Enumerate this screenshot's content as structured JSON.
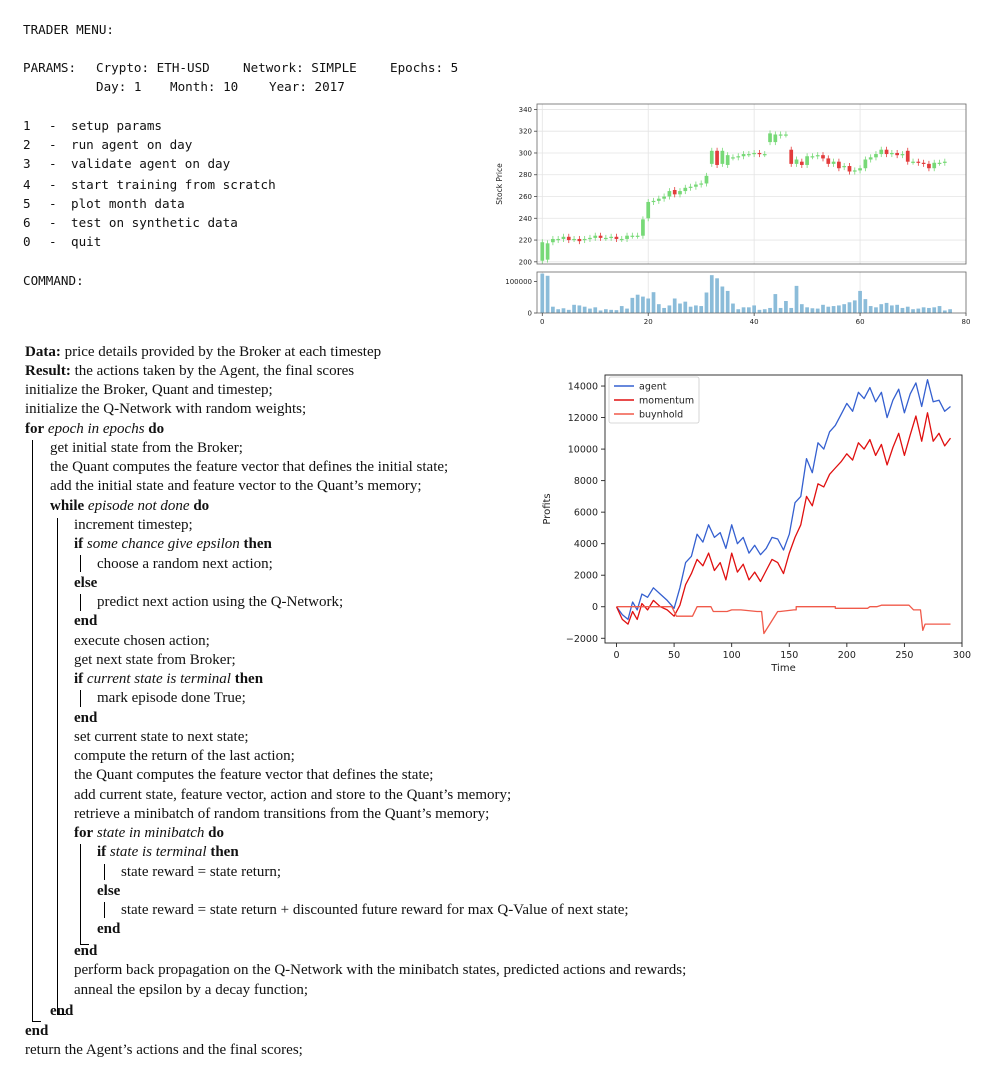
{
  "menu": {
    "title": "TRADER MENU:",
    "params_label": "PARAMS:",
    "crypto": "Crypto: ETH-USD",
    "network": "Network: SIMPLE",
    "epochs": "Epochs: 5",
    "day": "Day: 1",
    "month": "Month: 10",
    "year": "Year: 2017",
    "options": [
      {
        "num": "1",
        "label": "setup params"
      },
      {
        "num": "2",
        "label": "run agent on day"
      },
      {
        "num": "3",
        "label": "validate agent on day"
      },
      {
        "num": "4",
        "label": "start training from scratch"
      },
      {
        "num": "5",
        "label": "plot month data"
      },
      {
        "num": "6",
        "label": "test on synthetic data"
      },
      {
        "num": "0",
        "label": "quit"
      }
    ],
    "dash": "-",
    "command_label": "COMMAND:"
  },
  "algorithm": {
    "data_label": "Data:",
    "data_text": " price details provided by the Broker at each timestep",
    "result_label": "Result:",
    "result_text": " the actions taken by the Agent, the final scores",
    "l_init_broker": "initialize the Broker, Quant and timestep;",
    "l_init_qnet": "initialize the Q-Network with random weights;",
    "kw_for": "for",
    "for_epoch_cond": " epoch in epochs ",
    "kw_do": "do",
    "l_get_initial": "get initial state from the Broker;",
    "l_quant_initial": "the Quant computes the feature vector that defines the initial state;",
    "l_add_initial": "add the initial state and feature vector to the Quant’s memory;",
    "kw_while": "while",
    "while_cond": " episode not done ",
    "l_increment": "increment timestep;",
    "kw_if": "if",
    "if_chance_cond": " some chance give epsilon ",
    "kw_then": "then",
    "l_random_action": "choose a random next action;",
    "kw_else": "else",
    "l_predict_action": "predict next action using the Q-Network;",
    "kw_end": "end",
    "l_execute": "execute chosen action;",
    "l_next_state": "get next state from Broker;",
    "if_terminal_cond": " current state is terminal ",
    "l_mark_done": "mark episode done True;",
    "l_set_state": "set current state to next state;",
    "l_compute_return": "compute the return of the last action;",
    "l_quant_state": "the Quant computes the feature vector that defines the state;",
    "l_add_current": "add current state, feature vector, action and store to the Quant’s memory;",
    "l_retrieve": "retrieve a minibatch of random transitions from the Quant’s memory;",
    "for_state_cond": " state in minibatch ",
    "if_state_terminal_cond": " state is terminal ",
    "l_reward_return": "state reward = state return;",
    "l_reward_discount": "state reward = state return + discounted future reward for max Q-Value of next state;",
    "l_backprop": "perform back propagation on the Q-Network with the minibatch states, predicted actions and rewards;",
    "l_anneal": "anneal the epsilon by a decay function;",
    "l_return": "return the Agent’s actions and the final scores;"
  },
  "chart_data": [
    {
      "type": "candlestick",
      "ylabel": "Stock Price",
      "ylim": [
        198,
        345
      ],
      "yticks": [
        "340",
        "320",
        "300",
        "280",
        "260",
        "240",
        "220",
        "200"
      ],
      "ytick_values": [
        340,
        320,
        300,
        280,
        260,
        240,
        220,
        200
      ],
      "volume_ytick_labels": [
        "100000",
        "0"
      ],
      "volume_ytick_values": [
        100000,
        0
      ],
      "volume_ylim": [
        0,
        130000
      ],
      "xticks": [
        "0",
        "20",
        "40",
        "60",
        "80"
      ],
      "xtick_values": [
        0,
        20,
        40,
        60,
        80
      ],
      "xlim": [
        -1,
        80
      ],
      "up_color": "#77d977",
      "down_color": "#e23c3c",
      "volume_color": "#8bbcd9",
      "candles": [
        {
          "o": 201,
          "c": 218
        },
        {
          "o": 202,
          "c": 217
        },
        {
          "o": 218,
          "c": 221
        },
        {
          "o": 220,
          "c": 221
        },
        {
          "o": 221,
          "c": 223
        },
        {
          "o": 223,
          "c": 220
        },
        {
          "o": 221,
          "c": 221
        },
        {
          "o": 221,
          "c": 219
        },
        {
          "o": 220,
          "c": 221
        },
        {
          "o": 221,
          "c": 222
        },
        {
          "o": 222,
          "c": 224
        },
        {
          "o": 224,
          "c": 222
        },
        {
          "o": 222,
          "c": 222
        },
        {
          "o": 222,
          "c": 223
        },
        {
          "o": 223,
          "c": 221
        },
        {
          "o": 221,
          "c": 221
        },
        {
          "o": 221,
          "c": 224
        },
        {
          "o": 224,
          "c": 224
        },
        {
          "o": 224,
          "c": 224
        },
        {
          "o": 224,
          "c": 239
        },
        {
          "o": 240,
          "c": 255
        },
        {
          "o": 255,
          "c": 256
        },
        {
          "o": 256,
          "c": 258
        },
        {
          "o": 258,
          "c": 260
        },
        {
          "o": 260,
          "c": 265
        },
        {
          "o": 266,
          "c": 262
        },
        {
          "o": 262,
          "c": 265
        },
        {
          "o": 265,
          "c": 268
        },
        {
          "o": 268,
          "c": 269
        },
        {
          "o": 269,
          "c": 271
        },
        {
          "o": 271,
          "c": 272
        },
        {
          "o": 272,
          "c": 279
        },
        {
          "o": 290,
          "c": 302
        },
        {
          "o": 302,
          "c": 289
        },
        {
          "o": 290,
          "c": 302
        },
        {
          "o": 289,
          "c": 298
        },
        {
          "o": 296,
          "c": 296
        },
        {
          "o": 296,
          "c": 297
        },
        {
          "o": 297,
          "c": 299
        },
        {
          "o": 299,
          "c": 299
        },
        {
          "o": 299,
          "c": 300
        },
        {
          "o": 300,
          "c": 299
        },
        {
          "o": 299,
          "c": 299
        },
        {
          "o": 310,
          "c": 318
        },
        {
          "o": 310,
          "c": 317
        },
        {
          "o": 316,
          "c": 317
        },
        {
          "o": 317,
          "c": 317
        },
        {
          "o": 303,
          "c": 290
        },
        {
          "o": 290,
          "c": 294
        },
        {
          "o": 292,
          "c": 289
        },
        {
          "o": 289,
          "c": 297
        },
        {
          "o": 297,
          "c": 297
        },
        {
          "o": 297,
          "c": 298
        },
        {
          "o": 298,
          "c": 295
        },
        {
          "o": 295,
          "c": 290
        },
        {
          "o": 290,
          "c": 292
        },
        {
          "o": 292,
          "c": 286
        },
        {
          "o": 287,
          "c": 288
        },
        {
          "o": 288,
          "c": 283
        },
        {
          "o": 283,
          "c": 284
        },
        {
          "o": 284,
          "c": 286
        },
        {
          "o": 286,
          "c": 294
        },
        {
          "o": 294,
          "c": 296
        },
        {
          "o": 296,
          "c": 299
        },
        {
          "o": 299,
          "c": 303
        },
        {
          "o": 303,
          "c": 299
        },
        {
          "o": 299,
          "c": 300
        },
        {
          "o": 300,
          "c": 298
        },
        {
          "o": 298,
          "c": 299
        },
        {
          "o": 302,
          "c": 292
        },
        {
          "o": 292,
          "c": 292
        },
        {
          "o": 292,
          "c": 291
        },
        {
          "o": 291,
          "c": 290
        },
        {
          "o": 290,
          "c": 286
        },
        {
          "o": 286,
          "c": 291
        },
        {
          "o": 291,
          "c": 291
        },
        {
          "o": 291,
          "c": 292
        }
      ],
      "volumes": [
        125000,
        118000,
        20000,
        12000,
        15000,
        10000,
        26000,
        24000,
        20000,
        14000,
        18000,
        8000,
        12000,
        10000,
        9000,
        22000,
        14000,
        48000,
        58000,
        52000,
        46000,
        66000,
        28000,
        16000,
        24000,
        46000,
        30000,
        36000,
        20000,
        24000,
        22000,
        65000,
        120000,
        110000,
        84000,
        70000,
        30000,
        12000,
        18000,
        18000,
        24000,
        10000,
        12000,
        16000,
        60000,
        16000,
        38000,
        16000,
        86000,
        28000,
        18000,
        15000,
        14000,
        26000,
        20000,
        22000,
        24000,
        28000,
        34000,
        40000,
        70000,
        44000,
        22000,
        18000,
        28000,
        32000,
        24000,
        26000,
        16000,
        20000,
        12000,
        14000,
        18000,
        16000,
        18000,
        22000,
        8000,
        12000
      ]
    },
    {
      "type": "line",
      "xlabel": "Time",
      "ylabel": "Profits",
      "xlim": [
        -10,
        300
      ],
      "ylim": [
        -2300,
        14700
      ],
      "xticks": [
        "0",
        "50",
        "100",
        "150",
        "200",
        "250",
        "300"
      ],
      "xtick_values": [
        0,
        50,
        100,
        150,
        200,
        250,
        300
      ],
      "yticks": [
        "14000",
        "12000",
        "10000",
        "8000",
        "6000",
        "4000",
        "2000",
        "0",
        "−2000"
      ],
      "ytick_values": [
        14000,
        12000,
        10000,
        8000,
        6000,
        4000,
        2000,
        0,
        -2000
      ],
      "legend_position": "upper left",
      "series": [
        {
          "name": "agent",
          "color": "#3560d0",
          "x": [
            0,
            5,
            10,
            14,
            18,
            22,
            27,
            32,
            38,
            44,
            50,
            55,
            60,
            65,
            70,
            75,
            80,
            85,
            90,
            95,
            100,
            105,
            110,
            115,
            120,
            125,
            130,
            135,
            140,
            145,
            150,
            155,
            160,
            165,
            170,
            175,
            180,
            185,
            190,
            195,
            200,
            205,
            210,
            215,
            220,
            225,
            230,
            235,
            240,
            245,
            250,
            255,
            260,
            265,
            270,
            275,
            280,
            285,
            290
          ],
          "y": [
            0,
            -500,
            -800,
            300,
            -200,
            800,
            600,
            1200,
            800,
            400,
            -100,
            1200,
            2800,
            3200,
            4600,
            4100,
            5200,
            4400,
            4700,
            3700,
            5200,
            4000,
            4400,
            3400,
            3900,
            3300,
            3700,
            4400,
            4300,
            3600,
            4600,
            6600,
            7000,
            9400,
            8500,
            10400,
            10000,
            11100,
            11500,
            12200,
            12900,
            12400,
            13600,
            13200,
            13900,
            13000,
            13600,
            12000,
            13100,
            13800,
            12300,
            13500,
            14200,
            12700,
            14400,
            13000,
            13100,
            12400,
            12700
          ]
        },
        {
          "name": "momentum",
          "color": "#e01010",
          "x": [
            0,
            5,
            10,
            14,
            18,
            22,
            27,
            32,
            38,
            44,
            50,
            55,
            60,
            65,
            70,
            75,
            80,
            85,
            90,
            95,
            100,
            105,
            110,
            115,
            120,
            125,
            130,
            135,
            140,
            145,
            150,
            155,
            160,
            165,
            170,
            175,
            180,
            185,
            190,
            195,
            200,
            205,
            210,
            215,
            220,
            225,
            230,
            235,
            240,
            245,
            250,
            255,
            260,
            265,
            270,
            275,
            280,
            285,
            290
          ],
          "y": [
            0,
            -800,
            -1100,
            -300,
            -800,
            200,
            -200,
            400,
            0,
            -200,
            -600,
            100,
            1400,
            2100,
            3000,
            2600,
            3400,
            2300,
            2800,
            1700,
            3400,
            2200,
            2700,
            1700,
            2200,
            1600,
            2300,
            3000,
            2800,
            2100,
            3400,
            4400,
            5200,
            7000,
            6400,
            7800,
            7600,
            8400,
            8800,
            9200,
            9700,
            9300,
            10400,
            10000,
            10600,
            9600,
            10300,
            9000,
            10100,
            11000,
            9600,
            10900,
            12100,
            10500,
            12300,
            10500,
            11000,
            10200,
            10700
          ]
        },
        {
          "name": "buynhold",
          "color": "#f05a4a",
          "x": [
            0,
            12,
            24,
            36,
            48,
            52,
            66,
            70,
            82,
            84,
            96,
            100,
            108,
            122,
            126,
            128,
            140,
            142,
            154,
            156,
            156,
            170,
            180,
            190,
            190,
            218,
            220,
            226,
            230,
            254,
            258,
            264,
            266,
            268,
            290
          ],
          "y": [
            0,
            0,
            0,
            0,
            0,
            -600,
            -600,
            0,
            0,
            -300,
            -300,
            -200,
            -200,
            -300,
            -300,
            -1700,
            -300,
            -300,
            -200,
            -200,
            0,
            0,
            0,
            0,
            -100,
            -100,
            0,
            0,
            100,
            100,
            -200,
            -200,
            -1500,
            -1100,
            -1100
          ]
        }
      ]
    }
  ]
}
